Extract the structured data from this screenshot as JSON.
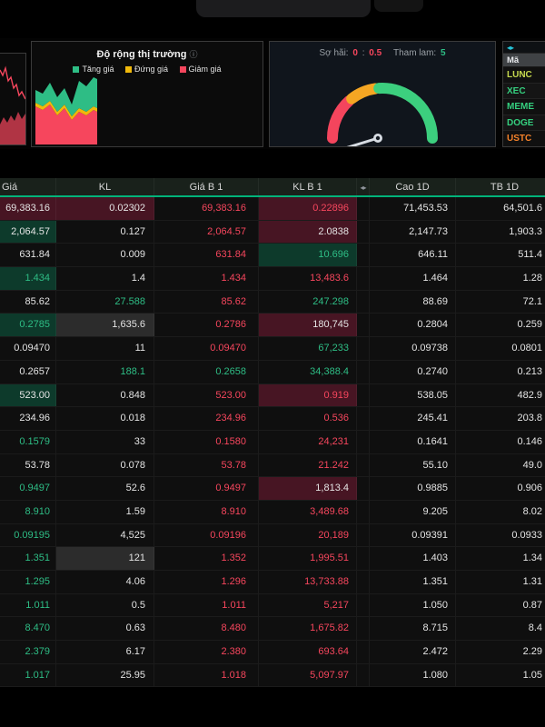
{
  "palette": {
    "up": "#2ebd85",
    "down": "#f6465d",
    "neutral": "#f0b90b",
    "accent": "#00b37a",
    "bgup": "#0d3a2b",
    "bgdown": "#471523",
    "bggray": "#2c2c2c",
    "gaugered": "#f4455d",
    "gaugeyellow": "#f5a623",
    "gaugegreen": "#3ccf7e",
    "teal": "#26c6da"
  },
  "panels": {
    "breadth": {
      "title": "Độ rộng thị trường",
      "info_icon": "ⓘ",
      "legend": [
        {
          "label": "Tăng giá"
        },
        {
          "label": "Đứng giá"
        },
        {
          "label": "Giảm giá"
        }
      ]
    },
    "gauge": {
      "fear_label": "Sợ hãi:",
      "fear_value": "0",
      "separator": ":",
      "mid_value": "0.5",
      "greed_label": "Tham lam:",
      "greed_value": "5"
    },
    "watchlist": {
      "nav_icon": "◂▸",
      "header": "Mã",
      "symbols": [
        {
          "name": "LUNC",
          "color": "#c6d94e"
        },
        {
          "name": "XEC",
          "color": "#35d07f"
        },
        {
          "name": "MEME",
          "color": "#35d07f"
        },
        {
          "name": "DOGE",
          "color": "#35d07f"
        },
        {
          "name": "USTC",
          "color": "#f5822a"
        }
      ]
    }
  },
  "table": {
    "columns": [
      "Giá",
      "KL",
      "Giá B 1",
      "KL B 1",
      "Cao 1D",
      "TB 1D"
    ],
    "splitter_icon": "◂▸",
    "rows": [
      [
        {
          "v": "69,383.16",
          "c": "w",
          "bg": "r"
        },
        {
          "v": "0.02302",
          "c": "w",
          "bg": "r"
        },
        {
          "v": "69,383.16",
          "c": "r",
          "bg": ""
        },
        {
          "v": "0.22896",
          "c": "r",
          "bg": "r"
        },
        {
          "v": "71,453.53",
          "c": "w",
          "bg": ""
        },
        {
          "v": "64,501.6",
          "c": "w",
          "bg": ""
        }
      ],
      [
        {
          "v": "2,064.57",
          "c": "w",
          "bg": "g"
        },
        {
          "v": "0.127",
          "c": "w",
          "bg": ""
        },
        {
          "v": "2,064.57",
          "c": "r",
          "bg": ""
        },
        {
          "v": "2.0838",
          "c": "w",
          "bg": "r"
        },
        {
          "v": "2,147.73",
          "c": "w",
          "bg": ""
        },
        {
          "v": "1,903.3",
          "c": "w",
          "bg": ""
        }
      ],
      [
        {
          "v": "631.84",
          "c": "w",
          "bg": ""
        },
        {
          "v": "0.009",
          "c": "w",
          "bg": ""
        },
        {
          "v": "631.84",
          "c": "r",
          "bg": ""
        },
        {
          "v": "10.696",
          "c": "g",
          "bg": "g"
        },
        {
          "v": "646.11",
          "c": "w",
          "bg": ""
        },
        {
          "v": "511.4",
          "c": "w",
          "bg": ""
        }
      ],
      [
        {
          "v": "1.434",
          "c": "g",
          "bg": "g"
        },
        {
          "v": "1.4",
          "c": "w",
          "bg": ""
        },
        {
          "v": "1.434",
          "c": "r",
          "bg": ""
        },
        {
          "v": "13,483.6",
          "c": "r",
          "bg": ""
        },
        {
          "v": "1.464",
          "c": "w",
          "bg": ""
        },
        {
          "v": "1.28",
          "c": "w",
          "bg": ""
        }
      ],
      [
        {
          "v": "85.62",
          "c": "w",
          "bg": ""
        },
        {
          "v": "27.588",
          "c": "g",
          "bg": ""
        },
        {
          "v": "85.62",
          "c": "r",
          "bg": ""
        },
        {
          "v": "247.298",
          "c": "g",
          "bg": ""
        },
        {
          "v": "88.69",
          "c": "w",
          "bg": ""
        },
        {
          "v": "72.1",
          "c": "w",
          "bg": ""
        }
      ],
      [
        {
          "v": "0.2785",
          "c": "g",
          "bg": "g"
        },
        {
          "v": "1,635.6",
          "c": "w",
          "bg": "d"
        },
        {
          "v": "0.2786",
          "c": "r",
          "bg": ""
        },
        {
          "v": "180,745",
          "c": "w",
          "bg": "r"
        },
        {
          "v": "0.2804",
          "c": "w",
          "bg": ""
        },
        {
          "v": "0.259",
          "c": "w",
          "bg": ""
        }
      ],
      [
        {
          "v": "0.09470",
          "c": "w",
          "bg": ""
        },
        {
          "v": "11",
          "c": "w",
          "bg": ""
        },
        {
          "v": "0.09470",
          "c": "r",
          "bg": ""
        },
        {
          "v": "67,233",
          "c": "g",
          "bg": ""
        },
        {
          "v": "0.09738",
          "c": "w",
          "bg": ""
        },
        {
          "v": "0.0801",
          "c": "w",
          "bg": ""
        }
      ],
      [
        {
          "v": "0.2657",
          "c": "w",
          "bg": ""
        },
        {
          "v": "188.1",
          "c": "g",
          "bg": ""
        },
        {
          "v": "0.2658",
          "c": "g",
          "bg": ""
        },
        {
          "v": "34,388.4",
          "c": "g",
          "bg": ""
        },
        {
          "v": "0.2740",
          "c": "w",
          "bg": ""
        },
        {
          "v": "0.213",
          "c": "w",
          "bg": ""
        }
      ],
      [
        {
          "v": "523.00",
          "c": "w",
          "bg": "g"
        },
        {
          "v": "0.848",
          "c": "w",
          "bg": ""
        },
        {
          "v": "523.00",
          "c": "r",
          "bg": ""
        },
        {
          "v": "0.919",
          "c": "r",
          "bg": "r"
        },
        {
          "v": "538.05",
          "c": "w",
          "bg": ""
        },
        {
          "v": "482.9",
          "c": "w",
          "bg": ""
        }
      ],
      [
        {
          "v": "234.96",
          "c": "w",
          "bg": ""
        },
        {
          "v": "0.018",
          "c": "w",
          "bg": ""
        },
        {
          "v": "234.96",
          "c": "r",
          "bg": ""
        },
        {
          "v": "0.536",
          "c": "r",
          "bg": ""
        },
        {
          "v": "245.41",
          "c": "w",
          "bg": ""
        },
        {
          "v": "203.8",
          "c": "w",
          "bg": ""
        }
      ],
      [
        {
          "v": "0.1579",
          "c": "g",
          "bg": ""
        },
        {
          "v": "33",
          "c": "w",
          "bg": ""
        },
        {
          "v": "0.1580",
          "c": "r",
          "bg": ""
        },
        {
          "v": "24,231",
          "c": "r",
          "bg": ""
        },
        {
          "v": "0.1641",
          "c": "w",
          "bg": ""
        },
        {
          "v": "0.146",
          "c": "w",
          "bg": ""
        }
      ],
      [
        {
          "v": "53.78",
          "c": "w",
          "bg": ""
        },
        {
          "v": "0.078",
          "c": "w",
          "bg": ""
        },
        {
          "v": "53.78",
          "c": "r",
          "bg": ""
        },
        {
          "v": "21.242",
          "c": "r",
          "bg": ""
        },
        {
          "v": "55.10",
          "c": "w",
          "bg": ""
        },
        {
          "v": "49.0",
          "c": "w",
          "bg": ""
        }
      ],
      [
        {
          "v": "0.9497",
          "c": "g",
          "bg": ""
        },
        {
          "v": "52.6",
          "c": "w",
          "bg": ""
        },
        {
          "v": "0.9497",
          "c": "r",
          "bg": ""
        },
        {
          "v": "1,813.4",
          "c": "w",
          "bg": "r"
        },
        {
          "v": "0.9885",
          "c": "w",
          "bg": ""
        },
        {
          "v": "0.906",
          "c": "w",
          "bg": ""
        }
      ],
      [
        {
          "v": "8.910",
          "c": "g",
          "bg": ""
        },
        {
          "v": "1.59",
          "c": "w",
          "bg": ""
        },
        {
          "v": "8.910",
          "c": "r",
          "bg": ""
        },
        {
          "v": "3,489.68",
          "c": "r",
          "bg": ""
        },
        {
          "v": "9.205",
          "c": "w",
          "bg": ""
        },
        {
          "v": "8.02",
          "c": "w",
          "bg": ""
        }
      ],
      [
        {
          "v": "0.09195",
          "c": "g",
          "bg": ""
        },
        {
          "v": "4,525",
          "c": "w",
          "bg": ""
        },
        {
          "v": "0.09196",
          "c": "r",
          "bg": ""
        },
        {
          "v": "20,189",
          "c": "r",
          "bg": ""
        },
        {
          "v": "0.09391",
          "c": "w",
          "bg": ""
        },
        {
          "v": "0.0933",
          "c": "w",
          "bg": ""
        }
      ],
      [
        {
          "v": "1.351",
          "c": "g",
          "bg": ""
        },
        {
          "v": "121",
          "c": "w",
          "bg": "d"
        },
        {
          "v": "1.352",
          "c": "r",
          "bg": ""
        },
        {
          "v": "1,995.51",
          "c": "r",
          "bg": ""
        },
        {
          "v": "1.403",
          "c": "w",
          "bg": ""
        },
        {
          "v": "1.34",
          "c": "w",
          "bg": ""
        }
      ],
      [
        {
          "v": "1.295",
          "c": "g",
          "bg": ""
        },
        {
          "v": "4.06",
          "c": "w",
          "bg": ""
        },
        {
          "v": "1.296",
          "c": "r",
          "bg": ""
        },
        {
          "v": "13,733.88",
          "c": "r",
          "bg": ""
        },
        {
          "v": "1.351",
          "c": "w",
          "bg": ""
        },
        {
          "v": "1.31",
          "c": "w",
          "bg": ""
        }
      ],
      [
        {
          "v": "1.011",
          "c": "g",
          "bg": ""
        },
        {
          "v": "0.5",
          "c": "w",
          "bg": ""
        },
        {
          "v": "1.011",
          "c": "r",
          "bg": ""
        },
        {
          "v": "5,217",
          "c": "r",
          "bg": ""
        },
        {
          "v": "1.050",
          "c": "w",
          "bg": ""
        },
        {
          "v": "0.87",
          "c": "w",
          "bg": ""
        }
      ],
      [
        {
          "v": "8.470",
          "c": "g",
          "bg": ""
        },
        {
          "v": "0.63",
          "c": "w",
          "bg": ""
        },
        {
          "v": "8.480",
          "c": "r",
          "bg": ""
        },
        {
          "v": "1,675.82",
          "c": "r",
          "bg": ""
        },
        {
          "v": "8.715",
          "c": "w",
          "bg": ""
        },
        {
          "v": "8.4",
          "c": "w",
          "bg": ""
        }
      ],
      [
        {
          "v": "2.379",
          "c": "g",
          "bg": ""
        },
        {
          "v": "6.17",
          "c": "w",
          "bg": ""
        },
        {
          "v": "2.380",
          "c": "r",
          "bg": ""
        },
        {
          "v": "693.64",
          "c": "r",
          "bg": ""
        },
        {
          "v": "2.472",
          "c": "w",
          "bg": ""
        },
        {
          "v": "2.29",
          "c": "w",
          "bg": ""
        }
      ],
      [
        {
          "v": "1.017",
          "c": "g",
          "bg": ""
        },
        {
          "v": "25.95",
          "c": "w",
          "bg": ""
        },
        {
          "v": "1.018",
          "c": "r",
          "bg": ""
        },
        {
          "v": "5,097.97",
          "c": "r",
          "bg": ""
        },
        {
          "v": "1.080",
          "c": "w",
          "bg": ""
        },
        {
          "v": "1.05",
          "c": "w",
          "bg": ""
        }
      ]
    ]
  }
}
